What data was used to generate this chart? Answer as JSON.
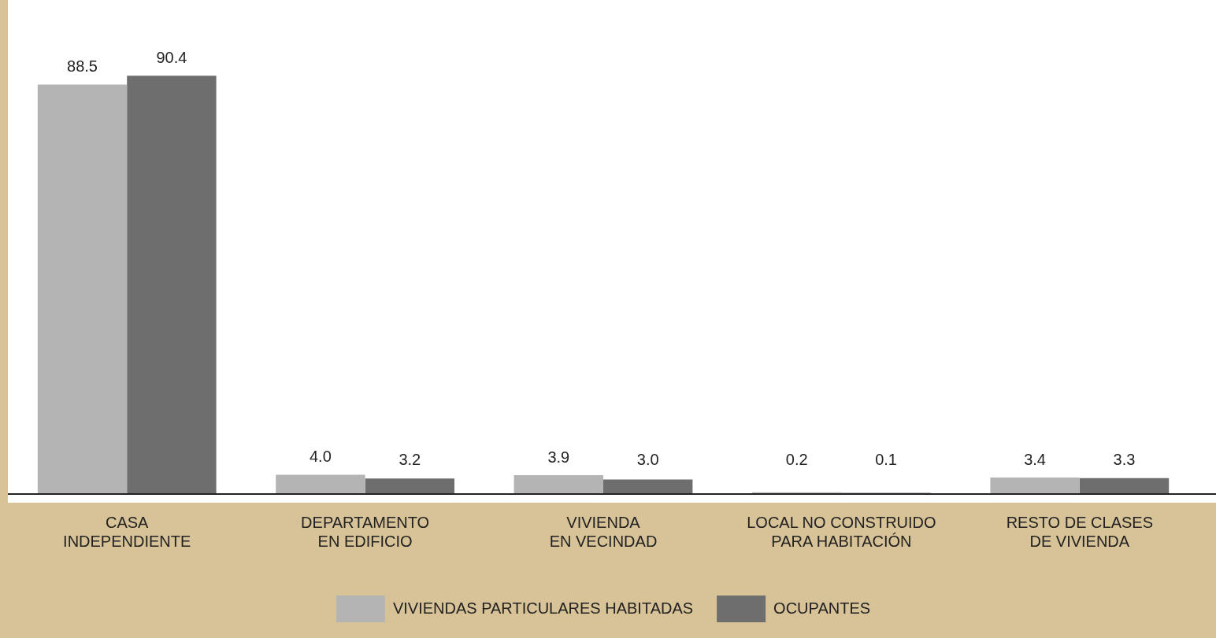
{
  "chart_data": {
    "type": "bar",
    "categories": [
      "CASA\nINDEPENDIENTE",
      "DEPARTAMENTO\nEN EDIFICIO",
      "VIVIENDA\nEN VECINDAD",
      "LOCAL NO CONSTRUIDO\nPARA HABITACIÓN",
      "RESTO DE CLASES\nDE VIVIENDA"
    ],
    "series": [
      {
        "name": "VIVIENDAS PARTICULARES HABITADAS",
        "color": "#b4b4b4",
        "values": [
          88.5,
          4.0,
          3.9,
          0.2,
          3.4
        ],
        "value_labels": [
          "88.5",
          "4.0",
          "3.9",
          "0.2",
          "3.4"
        ]
      },
      {
        "name": "OCUPANTES",
        "color": "#6e6e6e",
        "values": [
          90.4,
          3.2,
          3.0,
          0.1,
          3.3
        ],
        "value_labels": [
          "90.4",
          "3.2",
          "3.0",
          "0.1",
          "3.3"
        ]
      }
    ],
    "legend": "bottom",
    "grid": false
  }
}
